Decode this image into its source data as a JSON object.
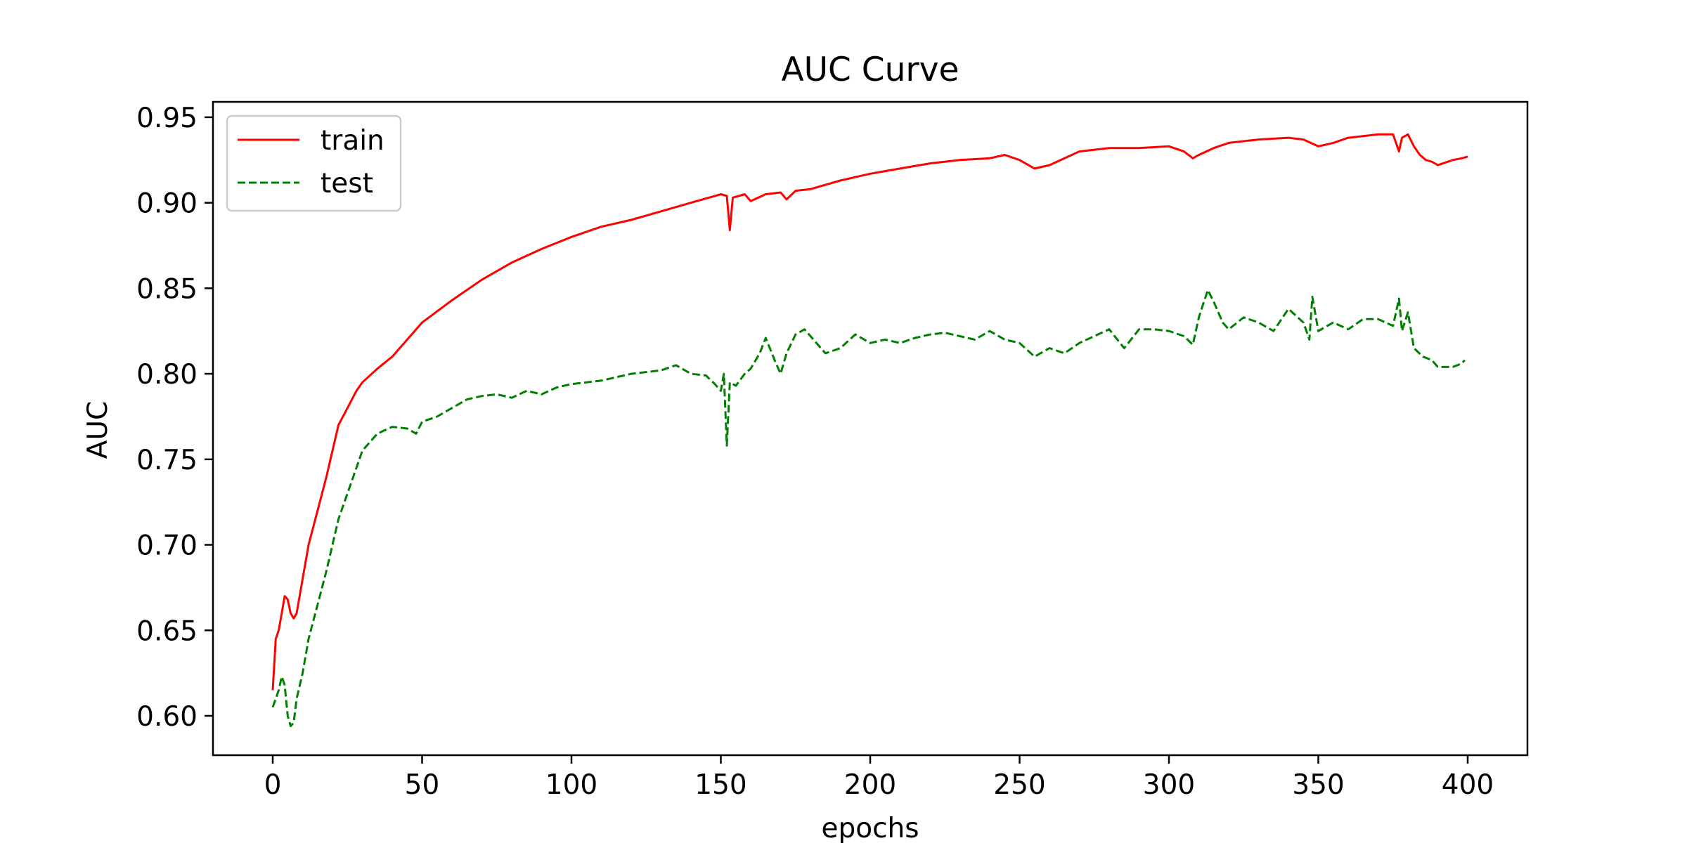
{
  "chart_data": {
    "type": "line",
    "title": "AUC Curve",
    "xlabel": "epochs",
    "ylabel": "AUC",
    "xlim": [
      -20,
      420
    ],
    "ylim": [
      0.577,
      0.959
    ],
    "x_ticks": [
      0,
      50,
      100,
      150,
      200,
      250,
      300,
      350,
      400
    ],
    "y_ticks": [
      0.6,
      0.65,
      0.7,
      0.75,
      0.8,
      0.85,
      0.9,
      0.95
    ],
    "x_tick_labels": [
      "0",
      "50",
      "100",
      "150",
      "200",
      "250",
      "300",
      "350",
      "400"
    ],
    "y_tick_labels": [
      "0.60",
      "0.65",
      "0.70",
      "0.75",
      "0.80",
      "0.85",
      "0.90",
      "0.95"
    ],
    "grid": false,
    "legend_position": "top-left",
    "series": [
      {
        "name": "train",
        "color": "#ff0000",
        "style": "solid",
        "points": [
          [
            0,
            0.615
          ],
          [
            1,
            0.645
          ],
          [
            2,
            0.65
          ],
          [
            3,
            0.66
          ],
          [
            4,
            0.67
          ],
          [
            5,
            0.668
          ],
          [
            6,
            0.66
          ],
          [
            7,
            0.657
          ],
          [
            8,
            0.66
          ],
          [
            10,
            0.68
          ],
          [
            12,
            0.7
          ],
          [
            15,
            0.72
          ],
          [
            18,
            0.74
          ],
          [
            20,
            0.755
          ],
          [
            22,
            0.77
          ],
          [
            25,
            0.78
          ],
          [
            28,
            0.79
          ],
          [
            30,
            0.795
          ],
          [
            35,
            0.803
          ],
          [
            40,
            0.81
          ],
          [
            45,
            0.82
          ],
          [
            50,
            0.83
          ],
          [
            60,
            0.843
          ],
          [
            70,
            0.855
          ],
          [
            80,
            0.865
          ],
          [
            90,
            0.873
          ],
          [
            100,
            0.88
          ],
          [
            110,
            0.886
          ],
          [
            120,
            0.89
          ],
          [
            130,
            0.895
          ],
          [
            140,
            0.9
          ],
          [
            148,
            0.904
          ],
          [
            150,
            0.905
          ],
          [
            152,
            0.904
          ],
          [
            153,
            0.884
          ],
          [
            154,
            0.903
          ],
          [
            158,
            0.905
          ],
          [
            160,
            0.901
          ],
          [
            165,
            0.905
          ],
          [
            170,
            0.906
          ],
          [
            172,
            0.902
          ],
          [
            175,
            0.907
          ],
          [
            180,
            0.908
          ],
          [
            190,
            0.913
          ],
          [
            200,
            0.917
          ],
          [
            210,
            0.92
          ],
          [
            220,
            0.923
          ],
          [
            230,
            0.925
          ],
          [
            240,
            0.926
          ],
          [
            245,
            0.928
          ],
          [
            250,
            0.925
          ],
          [
            255,
            0.92
          ],
          [
            260,
            0.922
          ],
          [
            270,
            0.93
          ],
          [
            280,
            0.932
          ],
          [
            290,
            0.932
          ],
          [
            300,
            0.933
          ],
          [
            305,
            0.93
          ],
          [
            308,
            0.926
          ],
          [
            310,
            0.928
          ],
          [
            315,
            0.932
          ],
          [
            320,
            0.935
          ],
          [
            330,
            0.937
          ],
          [
            340,
            0.938
          ],
          [
            345,
            0.937
          ],
          [
            350,
            0.933
          ],
          [
            355,
            0.935
          ],
          [
            360,
            0.938
          ],
          [
            365,
            0.939
          ],
          [
            370,
            0.94
          ],
          [
            375,
            0.94
          ],
          [
            377,
            0.93
          ],
          [
            378,
            0.938
          ],
          [
            380,
            0.94
          ],
          [
            382,
            0.933
          ],
          [
            384,
            0.928
          ],
          [
            386,
            0.925
          ],
          [
            388,
            0.924
          ],
          [
            390,
            0.922
          ],
          [
            395,
            0.925
          ],
          [
            398,
            0.926
          ],
          [
            400,
            0.927
          ]
        ]
      },
      {
        "name": "test",
        "color": "#008000",
        "style": "dashed",
        "points": [
          [
            0,
            0.605
          ],
          [
            1,
            0.61
          ],
          [
            2,
            0.615
          ],
          [
            3,
            0.623
          ],
          [
            4,
            0.618
          ],
          [
            5,
            0.6
          ],
          [
            6,
            0.594
          ],
          [
            7,
            0.596
          ],
          [
            8,
            0.61
          ],
          [
            10,
            0.625
          ],
          [
            12,
            0.645
          ],
          [
            15,
            0.665
          ],
          [
            18,
            0.685
          ],
          [
            20,
            0.7
          ],
          [
            22,
            0.715
          ],
          [
            25,
            0.73
          ],
          [
            28,
            0.745
          ],
          [
            30,
            0.755
          ],
          [
            35,
            0.765
          ],
          [
            40,
            0.769
          ],
          [
            45,
            0.768
          ],
          [
            48,
            0.765
          ],
          [
            50,
            0.772
          ],
          [
            55,
            0.775
          ],
          [
            60,
            0.78
          ],
          [
            65,
            0.785
          ],
          [
            70,
            0.787
          ],
          [
            75,
            0.788
          ],
          [
            80,
            0.786
          ],
          [
            85,
            0.79
          ],
          [
            90,
            0.788
          ],
          [
            95,
            0.792
          ],
          [
            100,
            0.794
          ],
          [
            105,
            0.795
          ],
          [
            110,
            0.796
          ],
          [
            120,
            0.8
          ],
          [
            130,
            0.802
          ],
          [
            135,
            0.805
          ],
          [
            140,
            0.8
          ],
          [
            145,
            0.799
          ],
          [
            148,
            0.794
          ],
          [
            150,
            0.79
          ],
          [
            151,
            0.8
          ],
          [
            152,
            0.758
          ],
          [
            153,
            0.795
          ],
          [
            155,
            0.793
          ],
          [
            158,
            0.8
          ],
          [
            160,
            0.803
          ],
          [
            163,
            0.812
          ],
          [
            165,
            0.821
          ],
          [
            168,
            0.808
          ],
          [
            170,
            0.8
          ],
          [
            172,
            0.812
          ],
          [
            175,
            0.823
          ],
          [
            178,
            0.826
          ],
          [
            180,
            0.822
          ],
          [
            185,
            0.812
          ],
          [
            190,
            0.815
          ],
          [
            195,
            0.823
          ],
          [
            200,
            0.818
          ],
          [
            205,
            0.82
          ],
          [
            210,
            0.818
          ],
          [
            215,
            0.821
          ],
          [
            220,
            0.823
          ],
          [
            225,
            0.824
          ],
          [
            230,
            0.822
          ],
          [
            235,
            0.82
          ],
          [
            240,
            0.825
          ],
          [
            245,
            0.82
          ],
          [
            250,
            0.818
          ],
          [
            255,
            0.81
          ],
          [
            260,
            0.815
          ],
          [
            265,
            0.812
          ],
          [
            270,
            0.818
          ],
          [
            275,
            0.822
          ],
          [
            280,
            0.826
          ],
          [
            285,
            0.815
          ],
          [
            290,
            0.826
          ],
          [
            295,
            0.826
          ],
          [
            300,
            0.825
          ],
          [
            305,
            0.822
          ],
          [
            308,
            0.817
          ],
          [
            310,
            0.833
          ],
          [
            313,
            0.849
          ],
          [
            315,
            0.842
          ],
          [
            318,
            0.83
          ],
          [
            320,
            0.826
          ],
          [
            325,
            0.833
          ],
          [
            330,
            0.83
          ],
          [
            335,
            0.825
          ],
          [
            340,
            0.838
          ],
          [
            345,
            0.83
          ],
          [
            347,
            0.82
          ],
          [
            348,
            0.845
          ],
          [
            350,
            0.825
          ],
          [
            355,
            0.83
          ],
          [
            360,
            0.826
          ],
          [
            365,
            0.832
          ],
          [
            370,
            0.832
          ],
          [
            375,
            0.828
          ],
          [
            377,
            0.844
          ],
          [
            378,
            0.825
          ],
          [
            380,
            0.836
          ],
          [
            382,
            0.815
          ],
          [
            385,
            0.81
          ],
          [
            388,
            0.808
          ],
          [
            390,
            0.804
          ],
          [
            395,
            0.804
          ],
          [
            398,
            0.806
          ],
          [
            399,
            0.808
          ]
        ]
      }
    ]
  }
}
